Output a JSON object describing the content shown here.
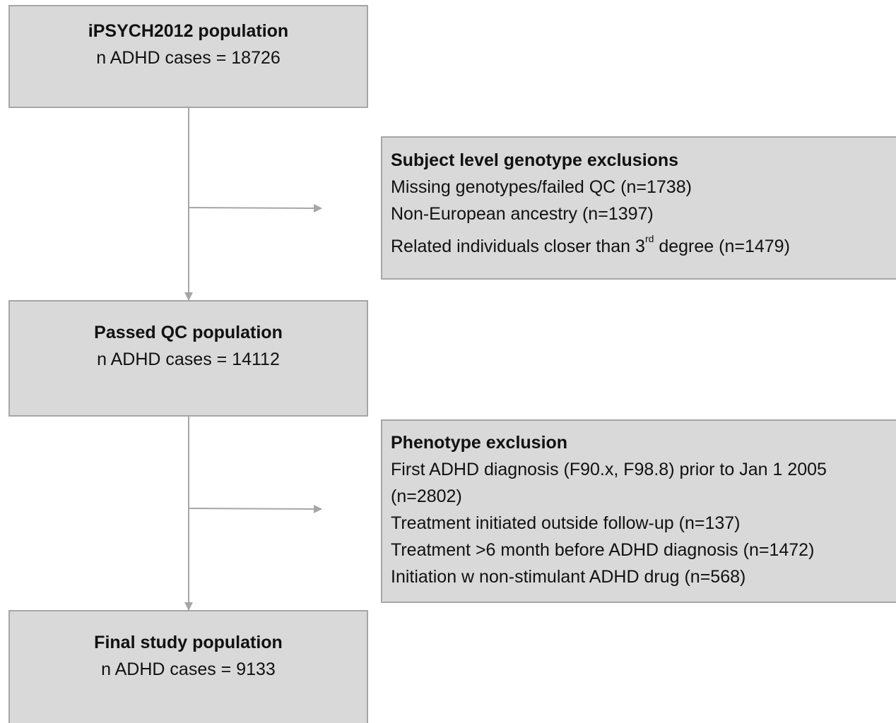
{
  "nodes": [
    {
      "title": "iPSYCH2012 population",
      "text": "n ADHD cases = 18726"
    },
    {
      "title": "Passed QC population",
      "text": "n ADHD cases = 14112"
    },
    {
      "title": "Final study population",
      "text": "n ADHD cases = 9133"
    }
  ],
  "exclusions": [
    {
      "title": "Subject level genotype exclusions",
      "lines": [
        "Missing genotypes/failed QC (n=1738)",
        "Non-European ancestry (n=1397)"
      ],
      "last": {
        "before": "Related individuals closer than 3",
        "sup": "rd",
        "after": "degree (n=1479)"
      }
    },
    {
      "title": "Phenotype exclusion",
      "lines": [
        "First ADHD diagnosis (F90.x, F98.8) prior to Jan 1 2005",
        "(n=2802)",
        "Treatment initiated outside follow-up (n=137)",
        "Treatment >6 month before ADHD diagnosis (n=1472)",
        "Initiation w non-stimulant ADHD drug (n=568)"
      ]
    }
  ]
}
